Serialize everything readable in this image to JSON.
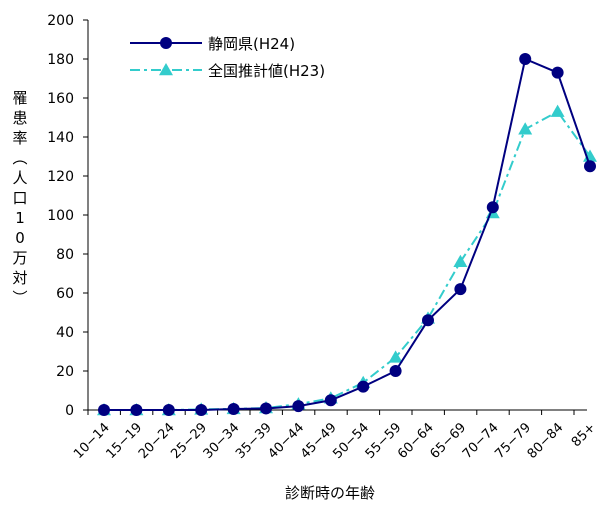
{
  "chart_data": {
    "type": "line",
    "xlabel": "診断時の年齢",
    "ylabel": "罹患率（人口10万対）",
    "ylabel_chars": [
      "罹",
      "患",
      "率",
      "︵",
      "人",
      "口",
      "1",
      "0",
      "万",
      "対",
      "︶"
    ],
    "ylim": [
      0,
      200
    ],
    "yticks": [
      0,
      20,
      40,
      60,
      80,
      100,
      120,
      140,
      160,
      180,
      200
    ],
    "categories": [
      "10−14",
      "15−19",
      "20−24",
      "25−29",
      "30−34",
      "35−39",
      "40−44",
      "45−49",
      "50−54",
      "55−59",
      "60−64",
      "65−69",
      "70−74",
      "75−79",
      "80−84",
      "85+"
    ],
    "legend_position": "top-left",
    "grid": false,
    "series": [
      {
        "name": "静岡県(H24)",
        "color": "#000080",
        "marker": "circle",
        "line_style": "solid",
        "values": [
          0,
          0,
          0,
          0,
          0.5,
          0.8,
          2,
          5,
          12,
          20,
          46,
          62,
          104,
          180,
          173,
          125
        ]
      },
      {
        "name": "全国推計値(H23)",
        "color": "#33CCCC",
        "marker": "triangle",
        "line_style": "dashdot",
        "values": [
          0,
          0,
          0,
          0.3,
          0.6,
          1,
          3,
          6,
          14,
          27,
          47,
          76,
          101,
          144,
          153,
          130
        ]
      }
    ]
  }
}
